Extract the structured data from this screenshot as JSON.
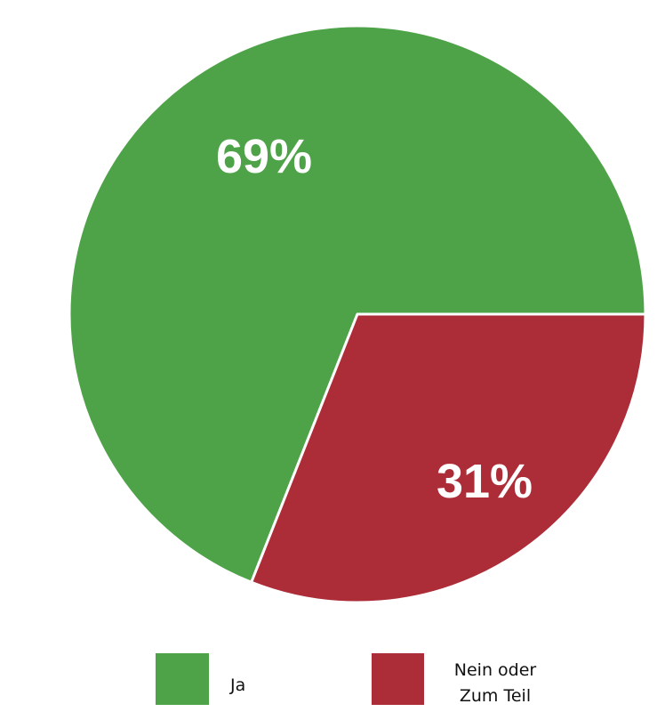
{
  "chart_data": {
    "type": "pie",
    "title": "",
    "slices": [
      {
        "label": "Ja",
        "value": 69,
        "data_label": "69%",
        "color": "#4EA348"
      },
      {
        "label": "Nein oder Zum Teil",
        "label_lines": [
          "Nein oder",
          "Zum Teil"
        ],
        "value": 31,
        "data_label": "31%",
        "color": "#AC2D38"
      }
    ],
    "start_angle_note": "second slice starts at 3 o'clock, clockwise",
    "legend": {
      "placement": "bottom",
      "entries": [
        "Ja",
        "Nein oder Zum Teil"
      ]
    }
  }
}
